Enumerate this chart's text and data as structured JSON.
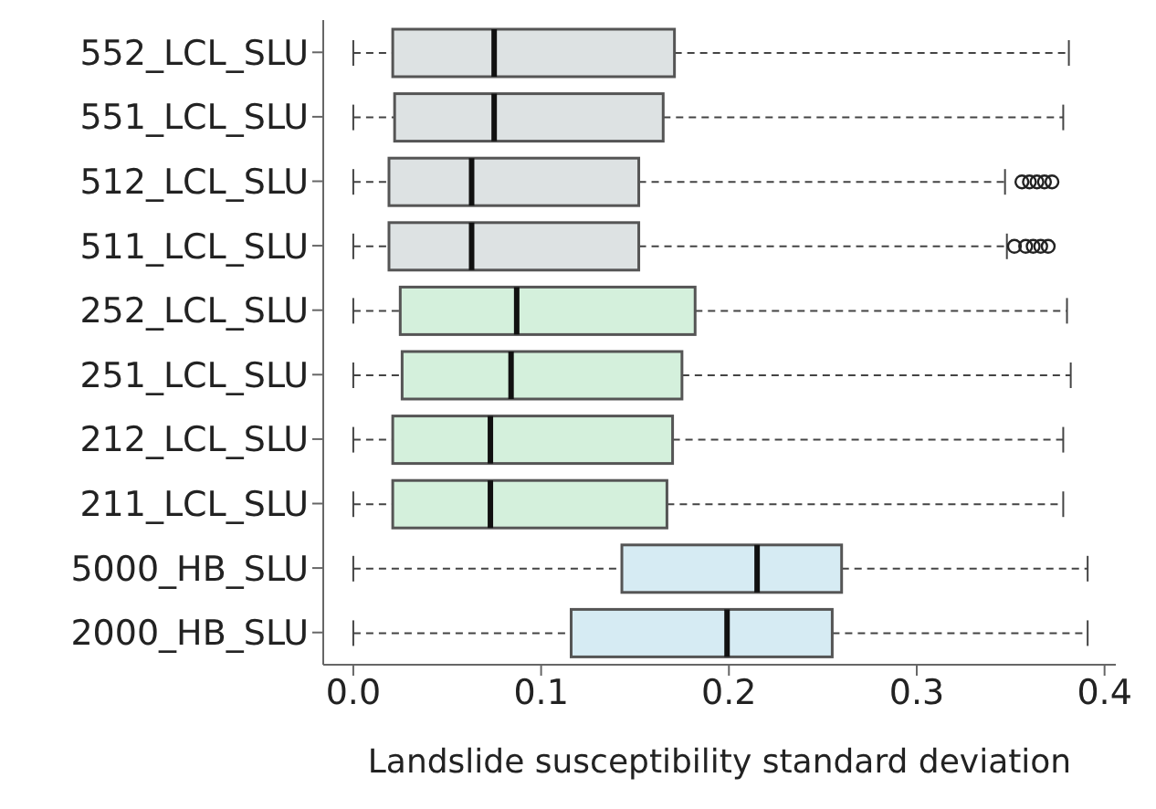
{
  "chart_data": {
    "type": "box",
    "orientation": "horizontal",
    "xlabel": "Landslide susceptibility standard deviation",
    "categories": [
      "552_LCL_SLU",
      "551_LCL_SLU",
      "512_LCL_SLU",
      "511_LCL_SLU",
      "252_LCL_SLU",
      "251_LCL_SLU",
      "212_LCL_SLU",
      "211_LCL_SLU",
      "5000_HB_SLU",
      "2000_HB_SLU"
    ],
    "boxes": [
      {
        "low": 0.0,
        "q1": 0.021,
        "median": 0.075,
        "q3": 0.171,
        "high": 0.381
      },
      {
        "low": 0.0,
        "q1": 0.022,
        "median": 0.075,
        "q3": 0.165,
        "high": 0.378
      },
      {
        "low": 0.0,
        "q1": 0.019,
        "median": 0.063,
        "q3": 0.152,
        "high": 0.347,
        "outliers": [
          0.356,
          0.36,
          0.364,
          0.368,
          0.372
        ]
      },
      {
        "low": 0.0,
        "q1": 0.019,
        "median": 0.063,
        "q3": 0.152,
        "high": 0.348,
        "outliers": [
          0.352,
          0.358,
          0.362,
          0.366,
          0.37
        ]
      },
      {
        "low": 0.0,
        "q1": 0.025,
        "median": 0.087,
        "q3": 0.182,
        "high": 0.38
      },
      {
        "low": 0.0,
        "q1": 0.026,
        "median": 0.084,
        "q3": 0.175,
        "high": 0.382
      },
      {
        "low": 0.0,
        "q1": 0.021,
        "median": 0.073,
        "q3": 0.17,
        "high": 0.378
      },
      {
        "low": 0.0,
        "q1": 0.021,
        "median": 0.073,
        "q3": 0.167,
        "high": 0.378
      },
      {
        "low": 0.0,
        "q1": 0.143,
        "median": 0.215,
        "q3": 0.26,
        "high": 0.391
      },
      {
        "low": 0.0,
        "q1": 0.116,
        "median": 0.199,
        "q3": 0.255,
        "high": 0.391
      }
    ],
    "colors": [
      "#dde2e3",
      "#dde2e3",
      "#dde2e3",
      "#dde2e3",
      "#d4f0dc",
      "#d4f0dc",
      "#d4f0dc",
      "#d4f0dc",
      "#d6ebf3",
      "#d6ebf3"
    ],
    "xlim": [
      -0.016,
      0.406
    ],
    "xticks": [
      {
        "value": 0,
        "label": "0.0"
      },
      {
        "value": 0.1,
        "label": "0.1"
      },
      {
        "value": 0.2,
        "label": "0.2"
      },
      {
        "value": 0.3,
        "label": "0.3"
      },
      {
        "value": 0.4,
        "label": "0.4"
      }
    ]
  }
}
